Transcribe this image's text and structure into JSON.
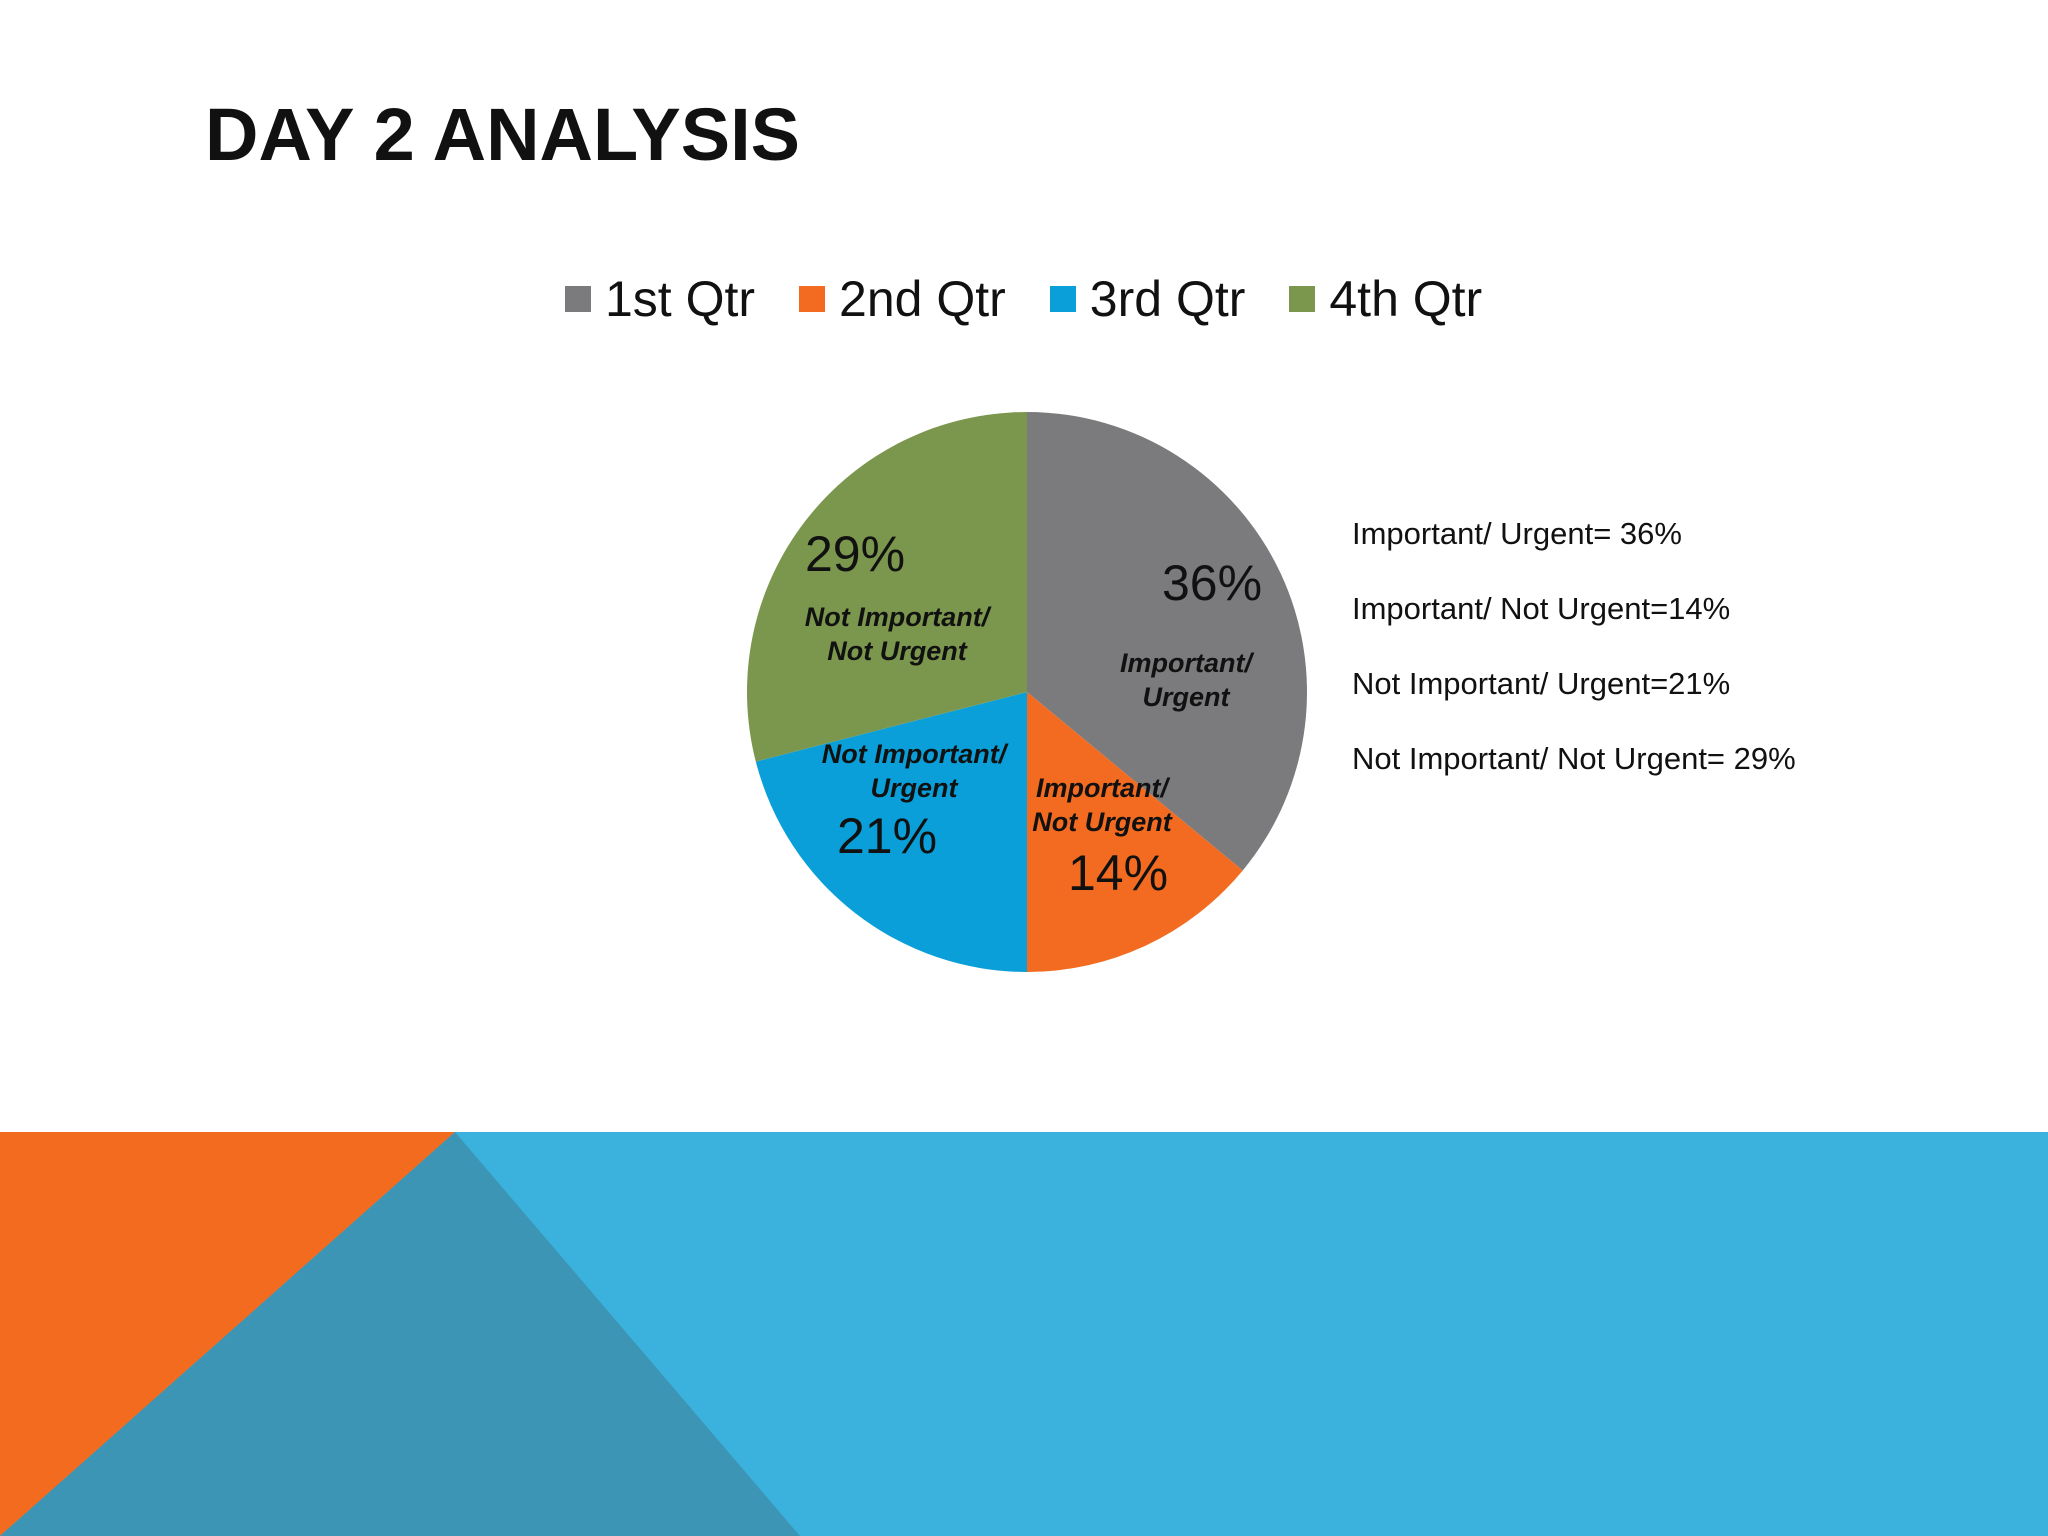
{
  "slide": {
    "title": "DAY 2 ANALYSIS"
  },
  "chart_data": {
    "type": "pie",
    "categories": [
      "1st Qtr",
      "2nd Qtr",
      "3rd Qtr",
      "4th Qtr"
    ],
    "values": [
      36,
      14,
      21,
      29
    ],
    "percent_labels": [
      "36%",
      "14%",
      "21%",
      "29%"
    ],
    "slice_labels": [
      [
        "Important/",
        "Urgent"
      ],
      [
        "Important/",
        "Not Urgent"
      ],
      [
        "Not Important/",
        "Urgent"
      ],
      [
        "Not Important/",
        "Not Urgent"
      ]
    ],
    "colors": [
      "#7b7b7d",
      "#f26b21",
      "#0a9fd8",
      "#7b974d"
    ],
    "legend_placement": "top"
  },
  "side_notes": [
    "Important/ Urgent= 36%",
    "Important/ Not Urgent=14%",
    "Not Important/ Urgent=21%",
    "Not Important/ Not Urgent= 29%"
  ],
  "footer_colors": {
    "orange": "#f26b1f",
    "steel_blue": "#3d95b5",
    "sky_blue": "#3bb2de"
  }
}
